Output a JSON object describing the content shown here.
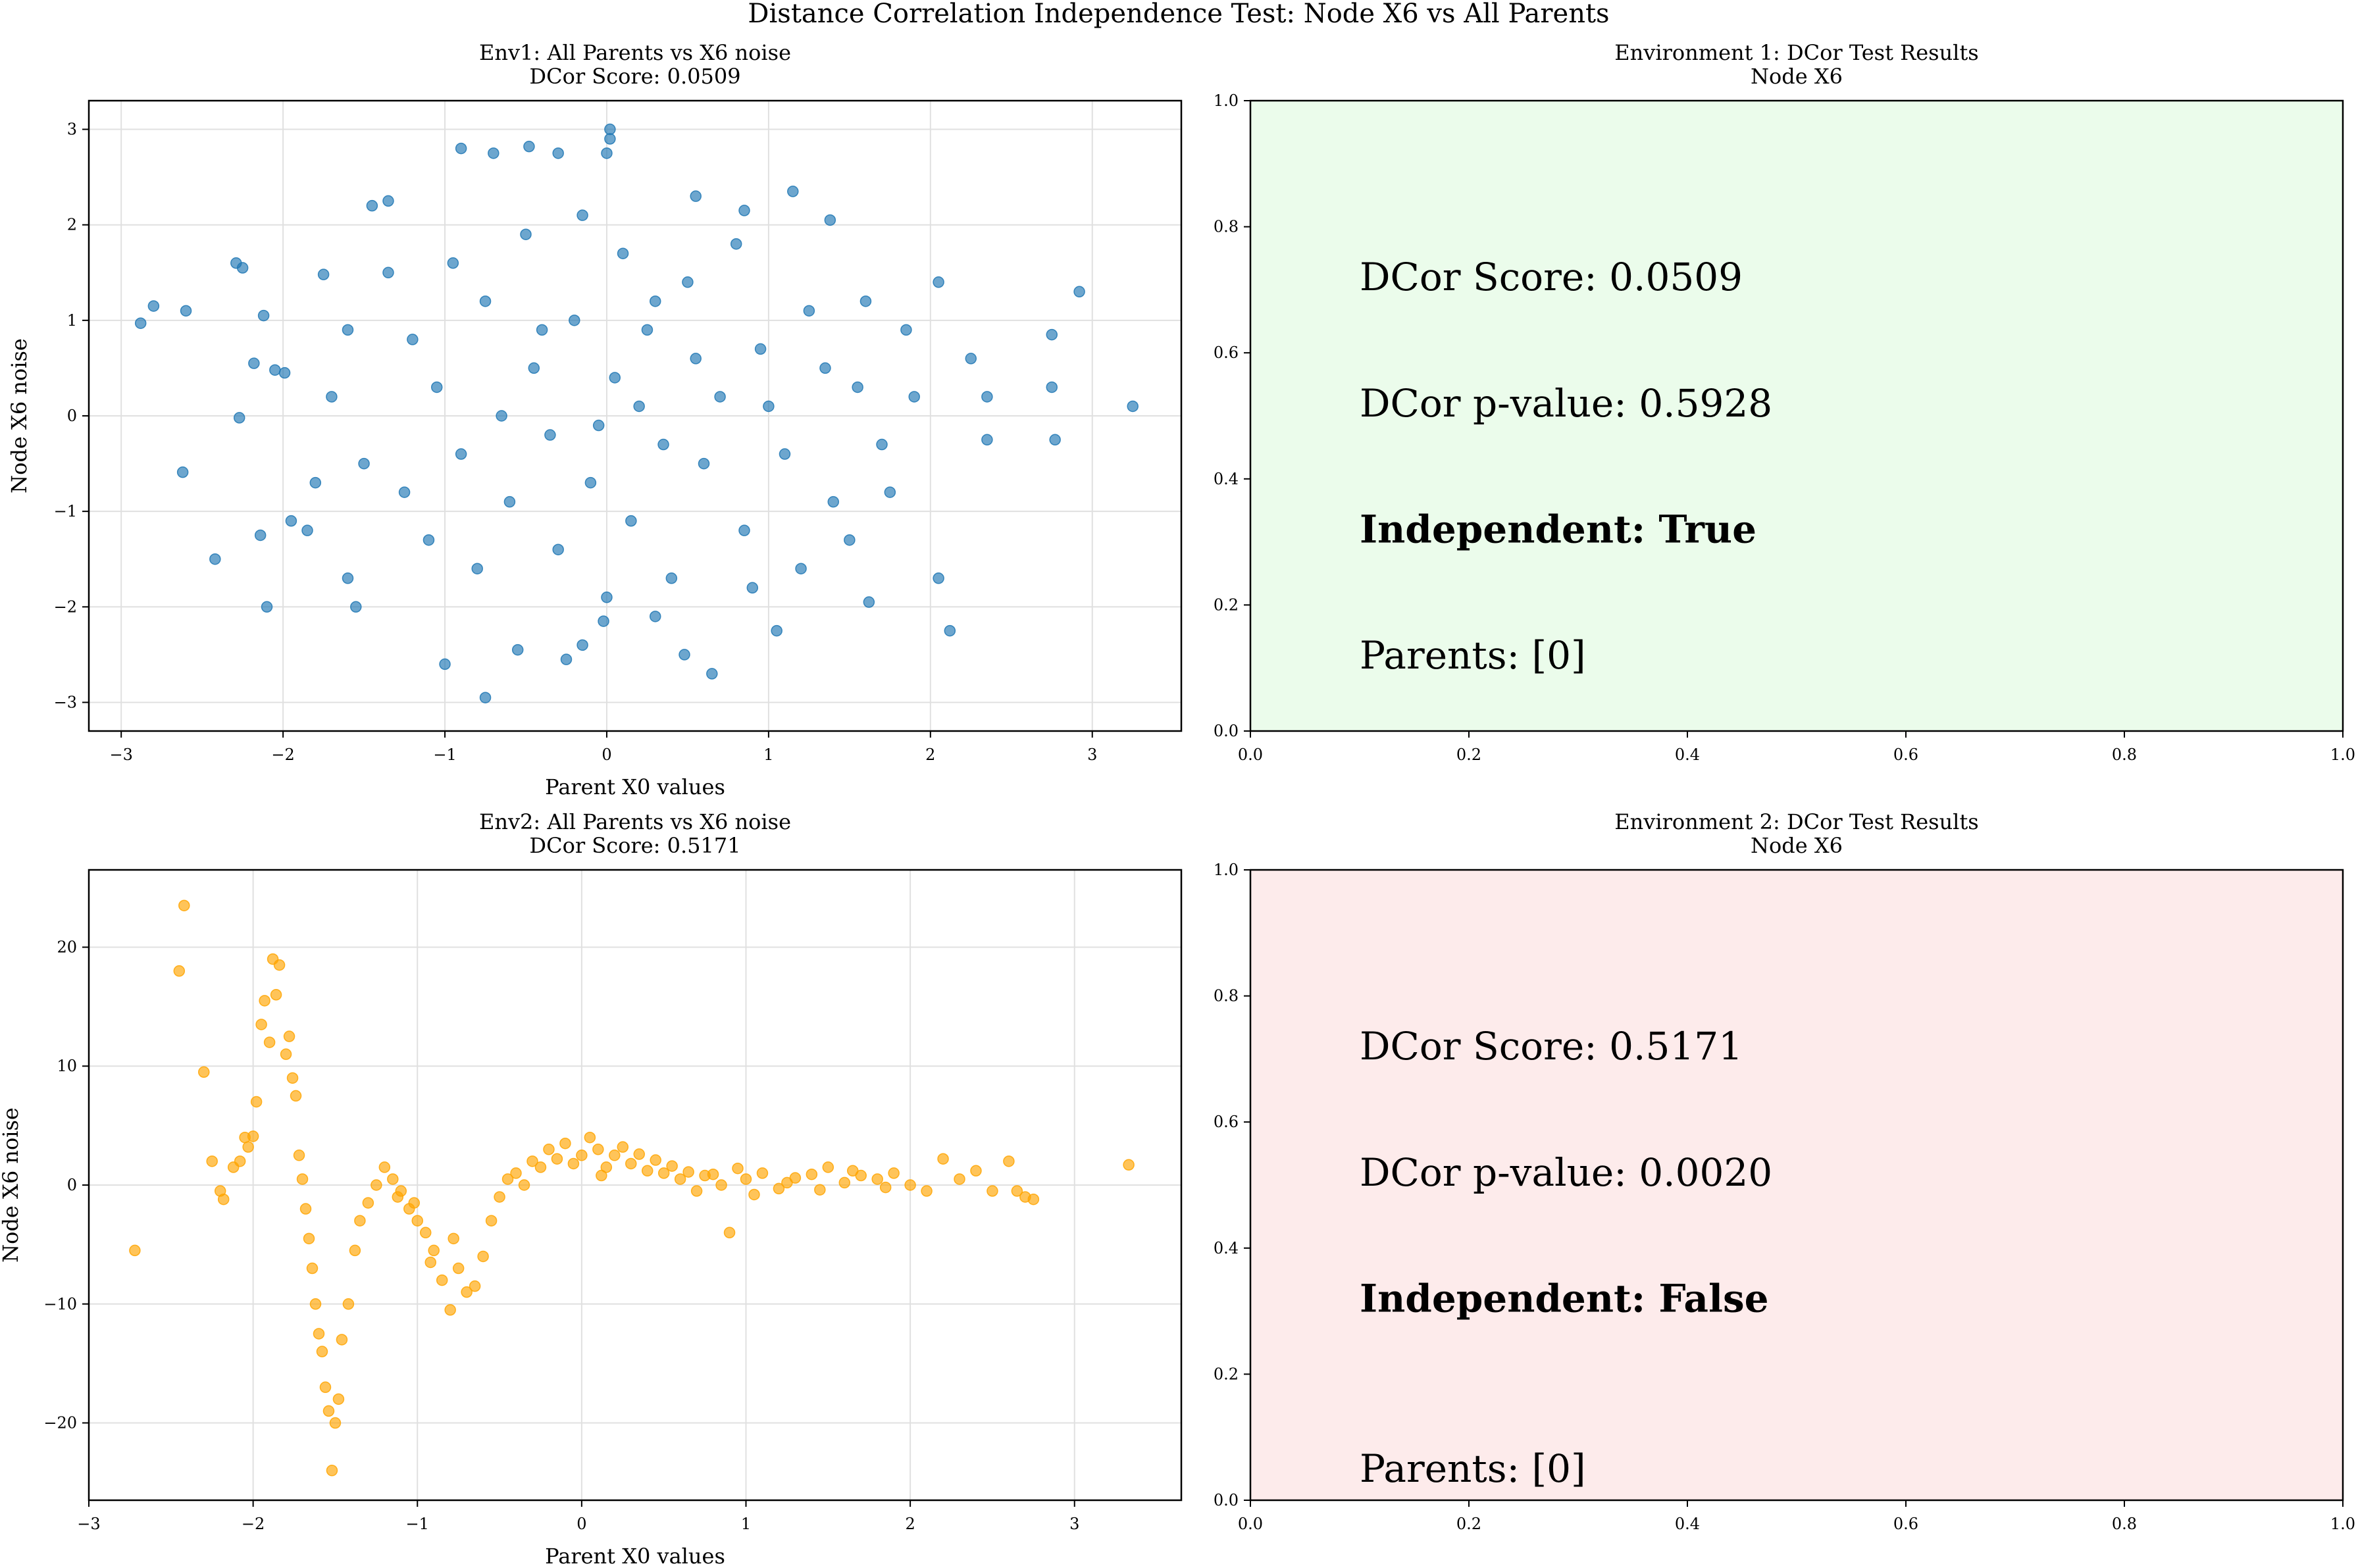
{
  "suptitle": "Distance Correlation Independence Test: Node X6 vs All Parents",
  "colors": {
    "env1_points": "#1f77b4",
    "env2_points": "#ffa500",
    "grid": "#e0e0e0",
    "independent_bg": "#ebfceb",
    "dependent_bg": "#fdebeb"
  },
  "chart_data": [
    {
      "type": "scatter",
      "title": "Env1: All Parents vs X6 noise",
      "subtitle": "DCor Score: 0.0509",
      "xlabel": "Parent X0 values",
      "ylabel": "Node X6 noise",
      "xlim": [
        -3.2,
        3.55
      ],
      "ylim": [
        -3.3,
        3.3
      ],
      "xticks": [
        -3,
        -2,
        -1,
        0,
        1,
        2,
        3
      ],
      "yticks": [
        -3,
        -2,
        -1,
        0,
        1,
        2,
        3
      ],
      "grid": true,
      "color": "#1f77b4",
      "points_summary": "~1000 points, roughly independent bivariate normal cloud",
      "points": [
        [
          -2.88,
          0.97
        ],
        [
          -2.8,
          1.15
        ],
        [
          -2.6,
          1.1
        ],
        [
          -2.62,
          -0.59
        ],
        [
          -2.42,
          -1.5
        ],
        [
          -2.29,
          1.6
        ],
        [
          -2.25,
          1.55
        ],
        [
          -2.27,
          -0.02
        ],
        [
          -2.18,
          0.55
        ],
        [
          -2.14,
          -1.25
        ],
        [
          -2.1,
          -2.0
        ],
        [
          -2.12,
          1.05
        ],
        [
          -2.05,
          0.48
        ],
        [
          -1.99,
          0.45
        ],
        [
          -1.95,
          -1.1
        ],
        [
          -1.85,
          -1.2
        ],
        [
          -1.75,
          1.48
        ],
        [
          -1.6,
          -1.7
        ],
        [
          -1.55,
          -2.0
        ],
        [
          -1.45,
          2.2
        ],
        [
          -1.35,
          2.25
        ],
        [
          -1.0,
          -2.6
        ],
        [
          -0.9,
          2.8
        ],
        [
          -0.75,
          -2.95
        ],
        [
          -0.7,
          2.75
        ],
        [
          -0.55,
          -2.45
        ],
        [
          -0.48,
          2.82
        ],
        [
          -0.3,
          2.75
        ],
        [
          -0.25,
          -2.55
        ],
        [
          -0.15,
          -2.4
        ],
        [
          0.0,
          2.75
        ],
        [
          0.02,
          2.9
        ],
        [
          -0.02,
          -2.15
        ],
        [
          0.02,
          3.0
        ],
        [
          0.3,
          -2.1
        ],
        [
          0.48,
          -2.5
        ],
        [
          0.65,
          -2.7
        ],
        [
          0.55,
          2.3
        ],
        [
          0.85,
          2.15
        ],
        [
          1.15,
          2.35
        ],
        [
          1.05,
          -2.25
        ],
        [
          1.38,
          2.05
        ],
        [
          1.62,
          -1.95
        ],
        [
          2.05,
          -1.7
        ],
        [
          2.05,
          1.4
        ],
        [
          2.12,
          -2.25
        ],
        [
          2.25,
          0.6
        ],
        [
          2.35,
          0.2
        ],
        [
          2.35,
          -0.25
        ],
        [
          2.75,
          0.85
        ],
        [
          2.75,
          0.3
        ],
        [
          2.77,
          -0.25
        ],
        [
          2.92,
          1.3
        ],
        [
          3.25,
          0.1
        ],
        [
          -1.2,
          0.8
        ],
        [
          -1.05,
          0.3
        ],
        [
          -0.9,
          -0.4
        ],
        [
          -0.75,
          1.2
        ],
        [
          -0.6,
          -0.9
        ],
        [
          -0.45,
          0.5
        ],
        [
          -0.35,
          -0.2
        ],
        [
          -0.2,
          1.0
        ],
        [
          -0.1,
          -0.7
        ],
        [
          0.05,
          0.4
        ],
        [
          0.15,
          -1.1
        ],
        [
          0.25,
          0.9
        ],
        [
          0.35,
          -0.3
        ],
        [
          0.5,
          1.4
        ],
        [
          0.6,
          -0.5
        ],
        [
          0.7,
          0.2
        ],
        [
          0.85,
          -1.2
        ],
        [
          0.95,
          0.7
        ],
        [
          1.1,
          -0.4
        ],
        [
          1.25,
          1.1
        ],
        [
          1.4,
          -0.9
        ],
        [
          1.55,
          0.3
        ],
        [
          1.7,
          -0.3
        ],
        [
          1.85,
          0.9
        ],
        [
          -1.5,
          -0.5
        ],
        [
          -1.35,
          1.5
        ],
        [
          -0.8,
          -1.6
        ],
        [
          -0.5,
          1.9
        ],
        [
          -0.3,
          -1.4
        ],
        [
          0.1,
          1.7
        ],
        [
          0.4,
          -1.7
        ],
        [
          0.8,
          1.8
        ],
        [
          1.2,
          -1.6
        ],
        [
          1.6,
          1.2
        ],
        [
          -1.7,
          0.2
        ],
        [
          -1.1,
          -1.3
        ],
        [
          -0.65,
          0.0
        ],
        [
          0.2,
          0.1
        ],
        [
          0.55,
          0.6
        ],
        [
          1.0,
          0.1
        ],
        [
          1.35,
          0.5
        ],
        [
          -0.05,
          -0.1
        ],
        [
          -0.4,
          0.9
        ],
        [
          0.3,
          1.2
        ],
        [
          -1.25,
          -0.8
        ],
        [
          1.5,
          -1.3
        ],
        [
          -0.95,
          1.6
        ],
        [
          0.9,
          -1.8
        ],
        [
          -1.8,
          -0.7
        ],
        [
          1.9,
          0.2
        ],
        [
          -0.15,
          2.1
        ],
        [
          0.0,
          -1.9
        ],
        [
          -1.6,
          0.9
        ],
        [
          1.75,
          -0.8
        ]
      ]
    },
    {
      "type": "table",
      "title": "Environment 1: DCor Test Results",
      "subtitle": "Node X6",
      "background": "#ebfceb",
      "xlim": [
        0.0,
        1.0
      ],
      "ylim": [
        0.0,
        1.0
      ],
      "xticks": [
        "0.0",
        "0.2",
        "0.4",
        "0.6",
        "0.8",
        "1.0"
      ],
      "yticks": [
        "0.0",
        "0.2",
        "0.4",
        "0.6",
        "0.8",
        "1.0"
      ],
      "lines": [
        {
          "text": "DCor Score: 0.0509",
          "x": 0.1,
          "y": 0.72,
          "bold": false
        },
        {
          "text": "DCor p-value: 0.5928",
          "x": 0.1,
          "y": 0.52,
          "bold": false
        },
        {
          "text": "Independent: True",
          "x": 0.1,
          "y": 0.32,
          "bold": true
        },
        {
          "text": "Parents: [0]",
          "x": 0.1,
          "y": 0.12,
          "bold": false
        }
      ]
    },
    {
      "type": "scatter",
      "title": "Env2: All Parents vs X6 noise",
      "subtitle": "DCor Score: 0.5171",
      "xlabel": "Parent X0 values",
      "ylabel": "Node X6 noise",
      "xlim": [
        -3.0,
        3.65
      ],
      "ylim": [
        -26.5,
        26.5
      ],
      "xticks": [
        -3,
        -2,
        -1,
        0,
        1,
        2,
        3
      ],
      "yticks": [
        -20,
        -10,
        0,
        10,
        20
      ],
      "grid": true,
      "color": "#ffa500",
      "points_summary": "~1000 points, strongly nonlinear dependence",
      "points": [
        [
          -2.72,
          -5.5
        ],
        [
          -2.45,
          18.0
        ],
        [
          -2.42,
          23.5
        ],
        [
          -2.3,
          9.5
        ],
        [
          -2.25,
          2.0
        ],
        [
          -2.2,
          -0.5
        ],
        [
          -2.18,
          -1.2
        ],
        [
          -2.12,
          1.5
        ],
        [
          -2.08,
          2.0
        ],
        [
          -2.05,
          4.0
        ],
        [
          -2.03,
          3.2
        ],
        [
          -2.0,
          4.1
        ],
        [
          -1.98,
          7.0
        ],
        [
          -1.95,
          13.5
        ],
        [
          -1.93,
          15.5
        ],
        [
          -1.9,
          12.0
        ],
        [
          -1.88,
          19.0
        ],
        [
          -1.86,
          16.0
        ],
        [
          -1.84,
          18.5
        ],
        [
          -1.8,
          11.0
        ],
        [
          -1.78,
          12.5
        ],
        [
          -1.76,
          9.0
        ],
        [
          -1.74,
          7.5
        ],
        [
          -1.72,
          2.5
        ],
        [
          -1.7,
          0.5
        ],
        [
          -1.68,
          -2.0
        ],
        [
          -1.66,
          -4.5
        ],
        [
          -1.64,
          -7.0
        ],
        [
          -1.62,
          -10.0
        ],
        [
          -1.6,
          -12.5
        ],
        [
          -1.58,
          -14.0
        ],
        [
          -1.56,
          -17.0
        ],
        [
          -1.54,
          -19.0
        ],
        [
          -1.52,
          -24.0
        ],
        [
          -1.5,
          -20.0
        ],
        [
          -1.48,
          -18.0
        ],
        [
          -1.46,
          -13.0
        ],
        [
          -1.42,
          -10.0
        ],
        [
          -1.38,
          -5.5
        ],
        [
          -1.35,
          -3.0
        ],
        [
          -1.3,
          -1.5
        ],
        [
          -1.25,
          0.0
        ],
        [
          -1.2,
          1.5
        ],
        [
          -1.15,
          0.5
        ],
        [
          -1.1,
          -0.5
        ],
        [
          -1.05,
          -2.0
        ],
        [
          -1.0,
          -3.0
        ],
        [
          -0.95,
          -4.0
        ],
        [
          -0.9,
          -5.5
        ],
        [
          -0.85,
          -8.0
        ],
        [
          -0.8,
          -10.5
        ],
        [
          -0.75,
          -7.0
        ],
        [
          -0.7,
          -9.0
        ],
        [
          -0.65,
          -8.5
        ],
        [
          -0.6,
          -6.0
        ],
        [
          -0.55,
          -3.0
        ],
        [
          -0.5,
          -1.0
        ],
        [
          -0.45,
          0.5
        ],
        [
          -0.4,
          1.0
        ],
        [
          -0.3,
          2.0
        ],
        [
          -0.2,
          3.0
        ],
        [
          -0.1,
          3.5
        ],
        [
          0.0,
          2.5
        ],
        [
          0.05,
          4.0
        ],
        [
          0.1,
          3.0
        ],
        [
          0.15,
          1.5
        ],
        [
          0.2,
          2.5
        ],
        [
          0.3,
          1.8
        ],
        [
          0.4,
          1.2
        ],
        [
          0.5,
          1.0
        ],
        [
          0.6,
          0.5
        ],
        [
          0.7,
          -0.5
        ],
        [
          0.75,
          0.8
        ],
        [
          0.85,
          0.0
        ],
        [
          0.9,
          -4.0
        ],
        [
          1.0,
          0.5
        ],
        [
          1.1,
          1.0
        ],
        [
          1.2,
          -0.3
        ],
        [
          1.3,
          0.6
        ],
        [
          1.4,
          0.9
        ],
        [
          1.5,
          1.5
        ],
        [
          1.6,
          0.2
        ],
        [
          1.7,
          0.8
        ],
        [
          1.8,
          0.5
        ],
        [
          1.9,
          1.0
        ],
        [
          2.0,
          0.0
        ],
        [
          2.1,
          -0.5
        ],
        [
          2.2,
          2.2
        ],
        [
          2.3,
          0.5
        ],
        [
          2.4,
          1.2
        ],
        [
          2.5,
          -0.5
        ],
        [
          2.6,
          2.0
        ],
        [
          2.65,
          -0.5
        ],
        [
          2.7,
          -1.0
        ],
        [
          2.75,
          -1.2
        ],
        [
          3.33,
          1.7
        ],
        [
          -0.25,
          1.5
        ],
        [
          -0.15,
          2.2
        ],
        [
          0.25,
          3.2
        ],
        [
          0.35,
          2.6
        ],
        [
          0.45,
          2.1
        ],
        [
          0.55,
          1.6
        ],
        [
          0.65,
          1.1
        ],
        [
          0.8,
          0.9
        ],
        [
          0.95,
          1.4
        ],
        [
          1.05,
          -0.8
        ],
        [
          1.25,
          0.2
        ],
        [
          1.45,
          -0.4
        ],
        [
          1.65,
          1.2
        ],
        [
          1.85,
          -0.2
        ],
        [
          -0.35,
          0.0
        ],
        [
          -0.05,
          1.8
        ],
        [
          0.12,
          0.8
        ],
        [
          -1.12,
          -1.0
        ],
        [
          -1.02,
          -1.5
        ],
        [
          -0.92,
          -6.5
        ],
        [
          -0.78,
          -4.5
        ]
      ]
    },
    {
      "type": "table",
      "title": "Environment 2: DCor Test Results",
      "subtitle": "Node X6",
      "background": "#fdebeb",
      "xlim": [
        0.0,
        1.0
      ],
      "ylim": [
        0.0,
        1.0
      ],
      "xticks": [
        "0.0",
        "0.2",
        "0.4",
        "0.6",
        "0.8",
        "1.0"
      ],
      "yticks": [
        "0.0",
        "0.2",
        "0.4",
        "0.6",
        "0.8",
        "1.0"
      ],
      "lines": [
        {
          "text": "DCor Score: 0.5171",
          "x": 0.1,
          "y": 0.72,
          "bold": false
        },
        {
          "text": "DCor p-value: 0.0020",
          "x": 0.1,
          "y": 0.52,
          "bold": false
        },
        {
          "text": "Independent: False",
          "x": 0.1,
          "y": 0.32,
          "bold": true
        },
        {
          "text": "Parents: [0]",
          "x": 0.1,
          "y": 0.05,
          "bold": false
        }
      ]
    }
  ]
}
